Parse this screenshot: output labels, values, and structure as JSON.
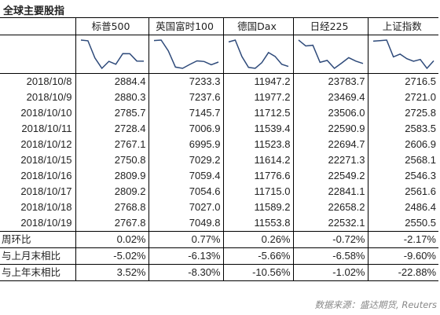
{
  "title": "全球主要股指",
  "series": [
    "标普500",
    "英国富时100",
    "德国Dax",
    "日经225",
    "上证指数"
  ],
  "dates": [
    "2018/10/8",
    "2018/10/9",
    "2018/10/10",
    "2018/10/11",
    "2018/10/12",
    "2018/10/15",
    "2018/10/16",
    "2018/10/17",
    "2018/10/18",
    "2018/10/19"
  ],
  "values": [
    [
      "2884.4",
      "2880.3",
      "2785.7",
      "2728.4",
      "2767.1",
      "2750.8",
      "2809.9",
      "2809.2",
      "2768.8",
      "2767.8"
    ],
    [
      "7233.3",
      "7237.6",
      "7145.7",
      "7006.9",
      "6995.9",
      "7029.2",
      "7059.4",
      "7054.6",
      "7027.0",
      "7049.8"
    ],
    [
      "11947.2",
      "11977.2",
      "11712.5",
      "11539.4",
      "11523.8",
      "11614.2",
      "11776.6",
      "11715.0",
      "11589.2",
      "11553.8"
    ],
    [
      "23783.7",
      "23469.4",
      "23506.0",
      "22590.9",
      "22694.7",
      "22271.3",
      "22549.2",
      "22841.1",
      "22658.2",
      "22532.1"
    ],
    [
      "2716.5",
      "2721.0",
      "2725.8",
      "2583.5",
      "2606.9",
      "2568.1",
      "2546.3",
      "2561.6",
      "2486.4",
      "2550.5"
    ]
  ],
  "summary": [
    {
      "label": "周环比",
      "values": [
        "0.02%",
        "0.77%",
        "0.26%",
        "-0.72%",
        "-2.17%"
      ]
    },
    {
      "label": "与上月末相比",
      "values": [
        "-5.02%",
        "-6.13%",
        "-5.66%",
        "-6.58%",
        "-9.60%"
      ]
    },
    {
      "label": "与上年末相比",
      "values": [
        "3.52%",
        "-8.30%",
        "-10.56%",
        "-1.02%",
        "-22.88%"
      ]
    }
  ],
  "source": "数据来源：盛达期货, Reuters",
  "colors": {
    "line": "#2e4a7a",
    "border": "#000000",
    "source": "#888888"
  }
}
